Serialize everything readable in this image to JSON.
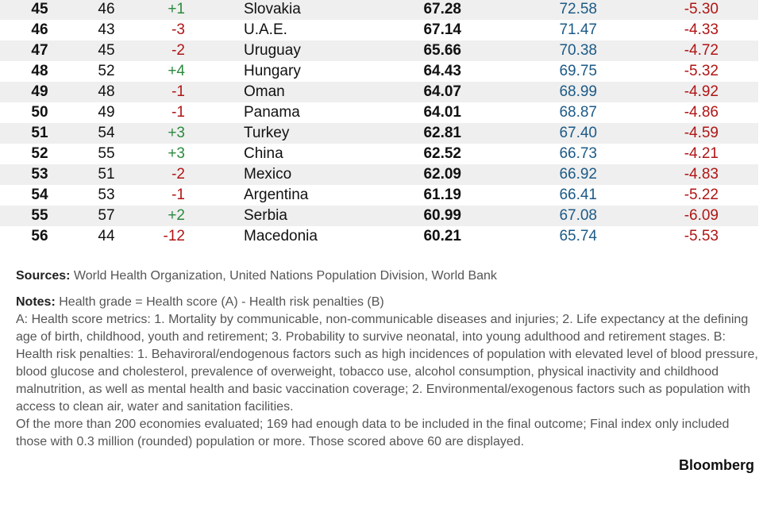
{
  "table": {
    "rows": [
      [
        "45",
        "46",
        "+1",
        "Slovakia",
        "67.28",
        "72.58",
        "-5.30"
      ],
      [
        "46",
        "43",
        "-3",
        "U.A.E.",
        "67.14",
        "71.47",
        "-4.33"
      ],
      [
        "47",
        "45",
        "-2",
        "Uruguay",
        "65.66",
        "70.38",
        "-4.72"
      ],
      [
        "48",
        "52",
        "+4",
        "Hungary",
        "64.43",
        "69.75",
        "-5.32"
      ],
      [
        "49",
        "48",
        "-1",
        "Oman",
        "64.07",
        "68.99",
        "-4.92"
      ],
      [
        "50",
        "49",
        "-1",
        "Panama",
        "64.01",
        "68.87",
        "-4.86"
      ],
      [
        "51",
        "54",
        "+3",
        "Turkey",
        "62.81",
        "67.40",
        "-4.59"
      ],
      [
        "52",
        "55",
        "+3",
        "China",
        "62.52",
        "66.73",
        "-4.21"
      ],
      [
        "53",
        "51",
        "-2",
        "Mexico",
        "62.09",
        "66.92",
        "-4.83"
      ],
      [
        "54",
        "53",
        "-1",
        "Argentina",
        "61.19",
        "66.41",
        "-5.22"
      ],
      [
        "55",
        "57",
        "+2",
        "Serbia",
        "60.99",
        "67.08",
        "-6.09"
      ],
      [
        "56",
        "44",
        "-12",
        "Macedonia",
        "60.21",
        "65.74",
        "-5.53"
      ]
    ]
  },
  "sources": {
    "label": "Sources:",
    "text": "World Health Organization, United Nations Population Division, World Bank"
  },
  "notes": {
    "label": "Notes:",
    "text": "Health grade = Health score (A) - Health risk penalties (B)",
    "paragraphs": [
      "A: Health score metrics: 1. Mortality by communicable, non-communicable diseases and injuries; 2. Life expectancy at the defining age of birth, childhood, youth and retirement; 3. Probability to survive neonatal, into young adulthood and retirement stages. B: Health risk penalties: 1. Behaviroral/endogenous factors such as high incidences of population with elevated level of blood pressure, blood glucose and cholesterol, prevalence of overweight, tobacco use, alcohol consumption, physical inactivity and childhood malnutrition, as well as mental health and basic vaccination coverage; 2. Environmental/exogenous factors such as population with access to clean air, water and sanitation facilities.",
      "Of the more than 200 economies evaluated; 169 had enough data to be included in the final outcome; Final index only included those with 0.3 million (rounded) population or more. Those scored above 60 are displayed."
    ]
  },
  "brand": "Bloomberg"
}
